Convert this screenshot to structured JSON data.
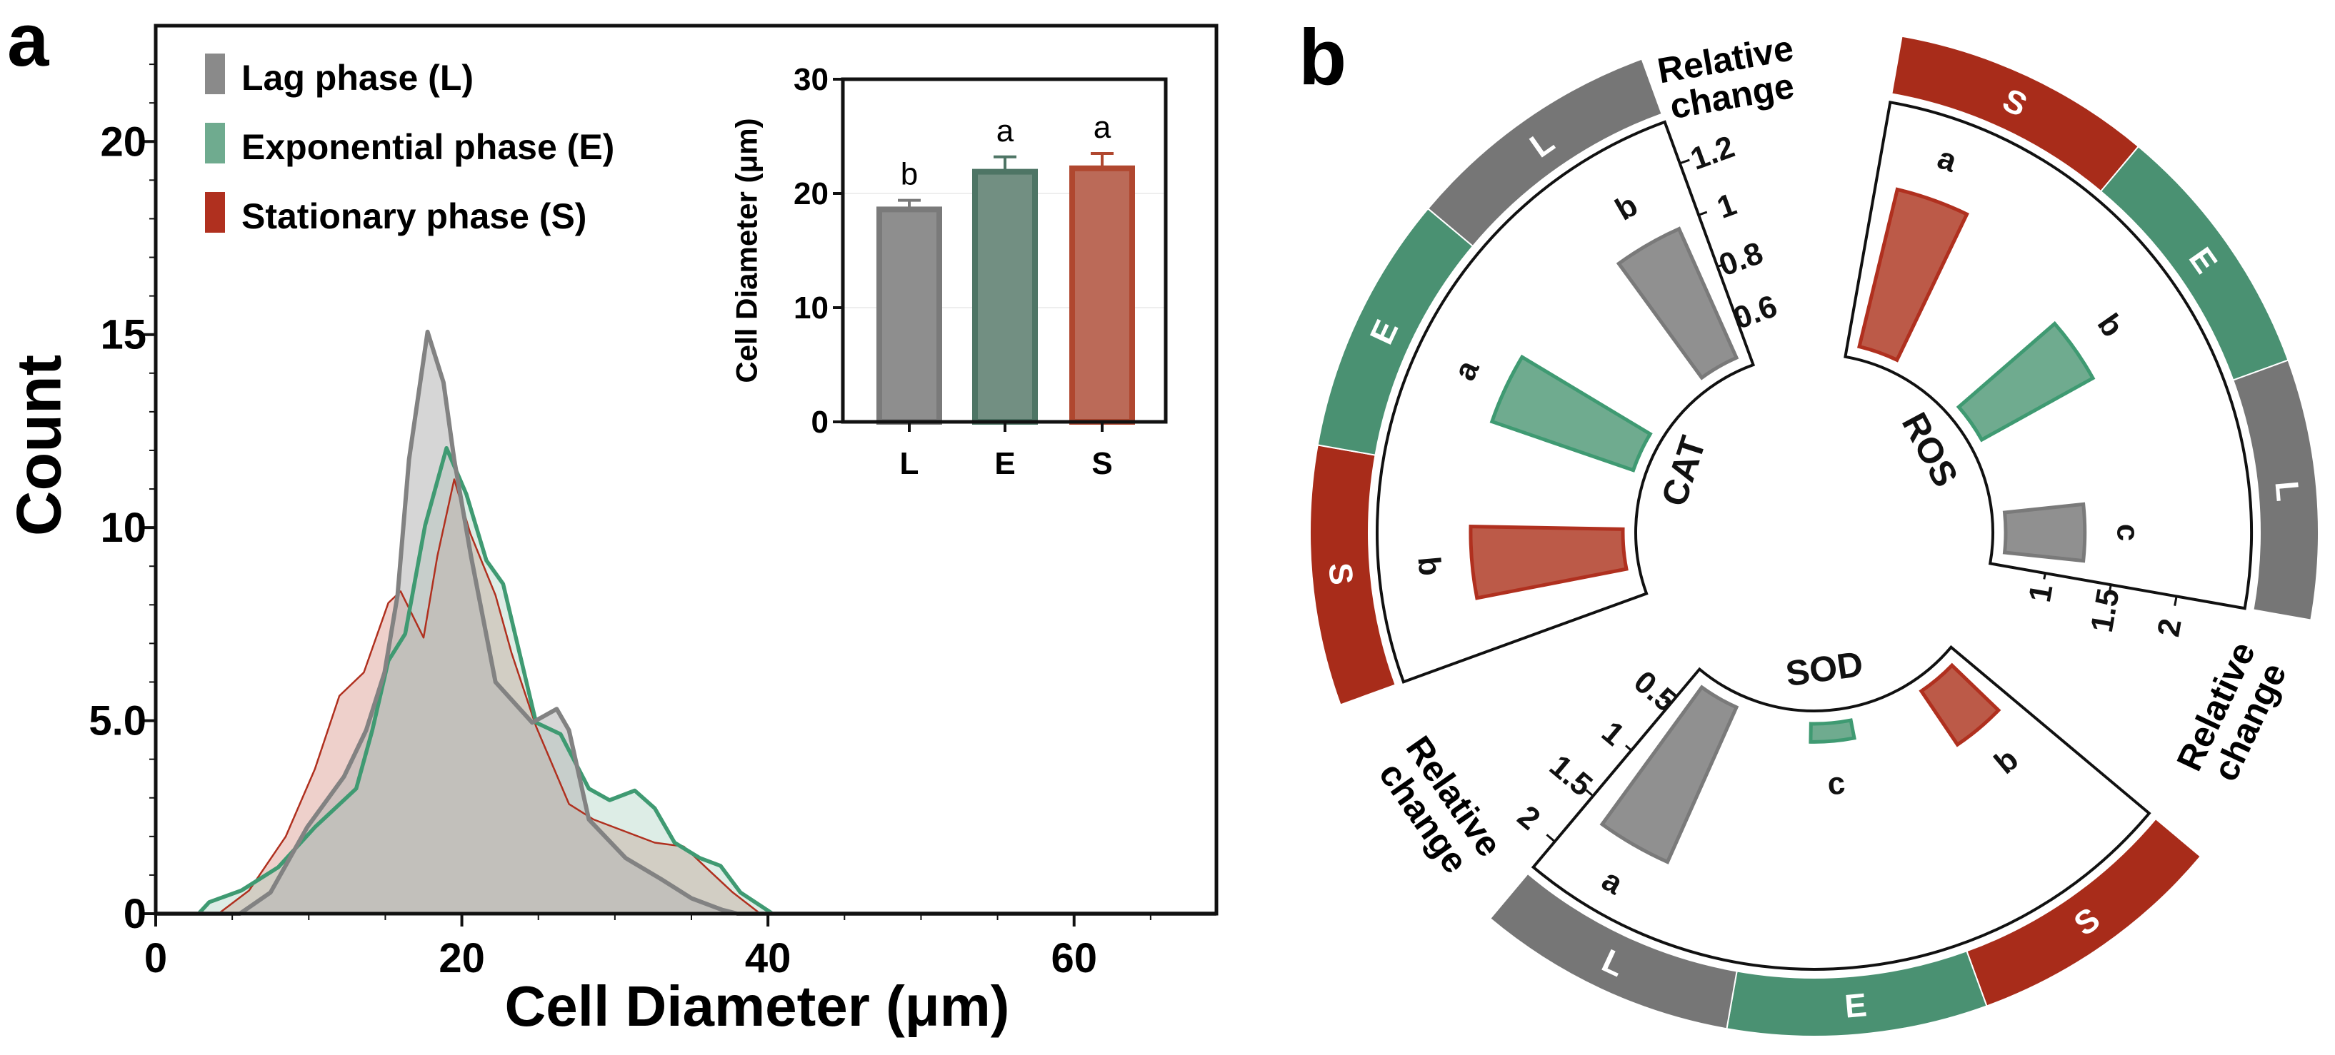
{
  "panel_labels": {
    "a": "a",
    "b": "b"
  },
  "chart_data": [
    {
      "type": "area",
      "title": "",
      "xlabel": "Cell Diameter (μm)",
      "ylabel": "Count",
      "xlim": [
        0,
        69.3
      ],
      "ylim": [
        0,
        23
      ],
      "xticks": [
        {
          "v": 0,
          "label": "0"
        },
        {
          "v": 20,
          "label": "20"
        },
        {
          "v": 40,
          "label": "40"
        },
        {
          "v": 60,
          "label": "60"
        }
      ],
      "yticks": [
        {
          "v": 0,
          "label": "0"
        },
        {
          "v": 5,
          "label": "5.0"
        },
        {
          "v": 10,
          "label": "10"
        },
        {
          "v": 15,
          "label": "15"
        },
        {
          "v": 20,
          "label": "20"
        }
      ],
      "legend_position": "top-left",
      "series": [
        {
          "name": "Stationary phase (S)",
          "key": "S",
          "line": "#b0301f",
          "fill": "#d9968c",
          "legend_color": "#b0301f",
          "points": [
            [
              0,
              0
            ],
            [
              4.1,
              0
            ],
            [
              6.1,
              0.6
            ],
            [
              8.5,
              2.0
            ],
            [
              10.4,
              3.75
            ],
            [
              12.0,
              5.64
            ],
            [
              13.6,
              6.25
            ],
            [
              15.2,
              8.05
            ],
            [
              16.0,
              8.35
            ],
            [
              17.5,
              7.15
            ],
            [
              18.4,
              9.26
            ],
            [
              19.5,
              11.25
            ],
            [
              20.55,
              9.85
            ],
            [
              22.2,
              8.25
            ],
            [
              23.25,
              6.75
            ],
            [
              24.85,
              4.85
            ],
            [
              27.0,
              2.84
            ],
            [
              28.6,
              2.44
            ],
            [
              32.6,
              1.84
            ],
            [
              34.5,
              1.74
            ],
            [
              36.1,
              1.14
            ],
            [
              37.7,
              0.55
            ],
            [
              39.5,
              0
            ],
            [
              69.3,
              0
            ]
          ]
        },
        {
          "name": "Exponential phase (E)",
          "key": "E",
          "line": "#3f9a72",
          "fill": "#9fcbb6",
          "legend_color": "#6fab8f",
          "points": [
            [
              0,
              0
            ],
            [
              2.8,
              0
            ],
            [
              3.5,
              0.3
            ],
            [
              5.6,
              0.6
            ],
            [
              8.0,
              1.2
            ],
            [
              10.4,
              2.24
            ],
            [
              13.1,
              3.24
            ],
            [
              14.15,
              4.75
            ],
            [
              15.2,
              6.55
            ],
            [
              16.3,
              7.25
            ],
            [
              17.6,
              10.05
            ],
            [
              19.0,
              12.06
            ],
            [
              20.3,
              10.86
            ],
            [
              21.6,
              9.15
            ],
            [
              22.7,
              8.54
            ],
            [
              24.85,
              4.95
            ],
            [
              26.45,
              4.65
            ],
            [
              28.3,
              3.24
            ],
            [
              29.65,
              2.94
            ],
            [
              31.3,
              3.19
            ],
            [
              32.6,
              2.73
            ],
            [
              33.9,
              1.84
            ],
            [
              35.55,
              1.44
            ],
            [
              36.9,
              1.24
            ],
            [
              38.2,
              0.55
            ],
            [
              40.3,
              0
            ],
            [
              69.3,
              0
            ]
          ]
        },
        {
          "name": "Lag phase (L)",
          "key": "L",
          "line": "#828282",
          "fill": "#b5b5b5",
          "legend_color": "#8a8a8a",
          "points": [
            [
              0,
              0
            ],
            [
              5.5,
              0
            ],
            [
              7.5,
              0.55
            ],
            [
              9.9,
              2.24
            ],
            [
              12.3,
              3.55
            ],
            [
              13.75,
              4.75
            ],
            [
              14.95,
              6.25
            ],
            [
              15.8,
              8.25
            ],
            [
              16.55,
              11.76
            ],
            [
              17.76,
              15.07
            ],
            [
              18.8,
              13.76
            ],
            [
              19.5,
              11.76
            ],
            [
              20.6,
              9.26
            ],
            [
              22.2,
              6.0
            ],
            [
              24.6,
              4.95
            ],
            [
              26.2,
              5.3
            ],
            [
              27.0,
              4.75
            ],
            [
              28.3,
              2.44
            ],
            [
              30.7,
              1.44
            ],
            [
              33,
              0.9
            ],
            [
              35,
              0.4
            ],
            [
              37,
              0.1
            ],
            [
              38,
              0
            ],
            [
              69.3,
              0
            ]
          ]
        }
      ],
      "legend": [
        {
          "label": "Lag phase (L)",
          "color": "#8a8a8a"
        },
        {
          "label": "Exponential phase (E)",
          "color": "#6fab8f"
        },
        {
          "label": "Stationary phase (S)",
          "color": "#b0301f"
        }
      ]
    },
    {
      "type": "bar",
      "title": "",
      "xlabel": "",
      "ylabel": "Cell Diameter (μm)",
      "ylim": [
        0,
        30
      ],
      "yticks": [
        0,
        10,
        20,
        30
      ],
      "categories": [
        "L",
        "E",
        "S"
      ],
      "values": [
        18.6,
        21.9,
        22.2
      ],
      "errors": [
        0.8,
        1.3,
        1.3
      ],
      "letters": [
        "b",
        "a",
        "a"
      ],
      "fills": [
        "#8e8e8e",
        "#728f82",
        "#bb6a58"
      ],
      "strokes": [
        "#7a7a7a",
        "#4e7565",
        "#b0472f"
      ]
    },
    {
      "type": "polar-bar",
      "colors": {
        "L": "#767676",
        "E": "#4a9172",
        "S": "#a82c1a"
      },
      "bar_colors": {
        "L": {
          "fill": "#909090",
          "stroke": "#7a7a7a"
        },
        "E": {
          "fill": "#6fab8f",
          "stroke": "#3f9a72"
        },
        "S": {
          "fill": "#bc5a48",
          "stroke": "#b0301f"
        }
      },
      "groups": [
        {
          "name": "CAT",
          "axis_label": [
            "Relative",
            "change"
          ],
          "range": [
            0.42,
            1.36
          ],
          "ticks": [
            {
              "v": 0.6,
              "label": "0.6"
            },
            {
              "v": 0.8,
              "label": "0.8"
            },
            {
              "v": 1,
              "label": "1"
            },
            {
              "v": 1.2,
              "label": "1.2"
            }
          ],
          "bars": [
            {
              "category": "S",
              "value": 1.02,
              "letter": "b"
            },
            {
              "category": "E",
              "value": 1.01,
              "letter": "a"
            },
            {
              "category": "L",
              "value": 0.98,
              "letter": "b"
            }
          ]
        },
        {
          "name": "ROS",
          "axis_label": [
            "Relative",
            "change"
          ],
          "range": [
            0.58,
            2.52
          ],
          "ticks": [
            {
              "v": 1,
              "label": "1"
            },
            {
              "v": 1.5,
              "label": "1.5"
            },
            {
              "v": 2,
              "label": "2"
            }
          ],
          "bars": [
            {
              "category": "S",
              "value": 1.89,
              "letter": "a"
            },
            {
              "category": "E",
              "value": 1.63,
              "letter": "b"
            },
            {
              "category": "L",
              "value": 1.27,
              "letter": "c"
            }
          ]
        },
        {
          "name": "SOD",
          "axis_label": [
            "Relative",
            "change"
          ],
          "range": [
            0.11,
            2.28
          ],
          "ticks": [
            {
              "v": 0.5,
              "label": "0.5"
            },
            {
              "v": 1,
              "label": "1"
            },
            {
              "v": 1.5,
              "label": "1.5"
            },
            {
              "v": 2,
              "label": "2"
            }
          ],
          "bars": [
            {
              "category": "S",
              "value": 0.76,
              "letter": "b"
            },
            {
              "category": "E",
              "value": 0.37,
              "letter": "c"
            },
            {
              "category": "L",
              "value": 1.64,
              "letter": "a"
            }
          ]
        }
      ]
    }
  ]
}
